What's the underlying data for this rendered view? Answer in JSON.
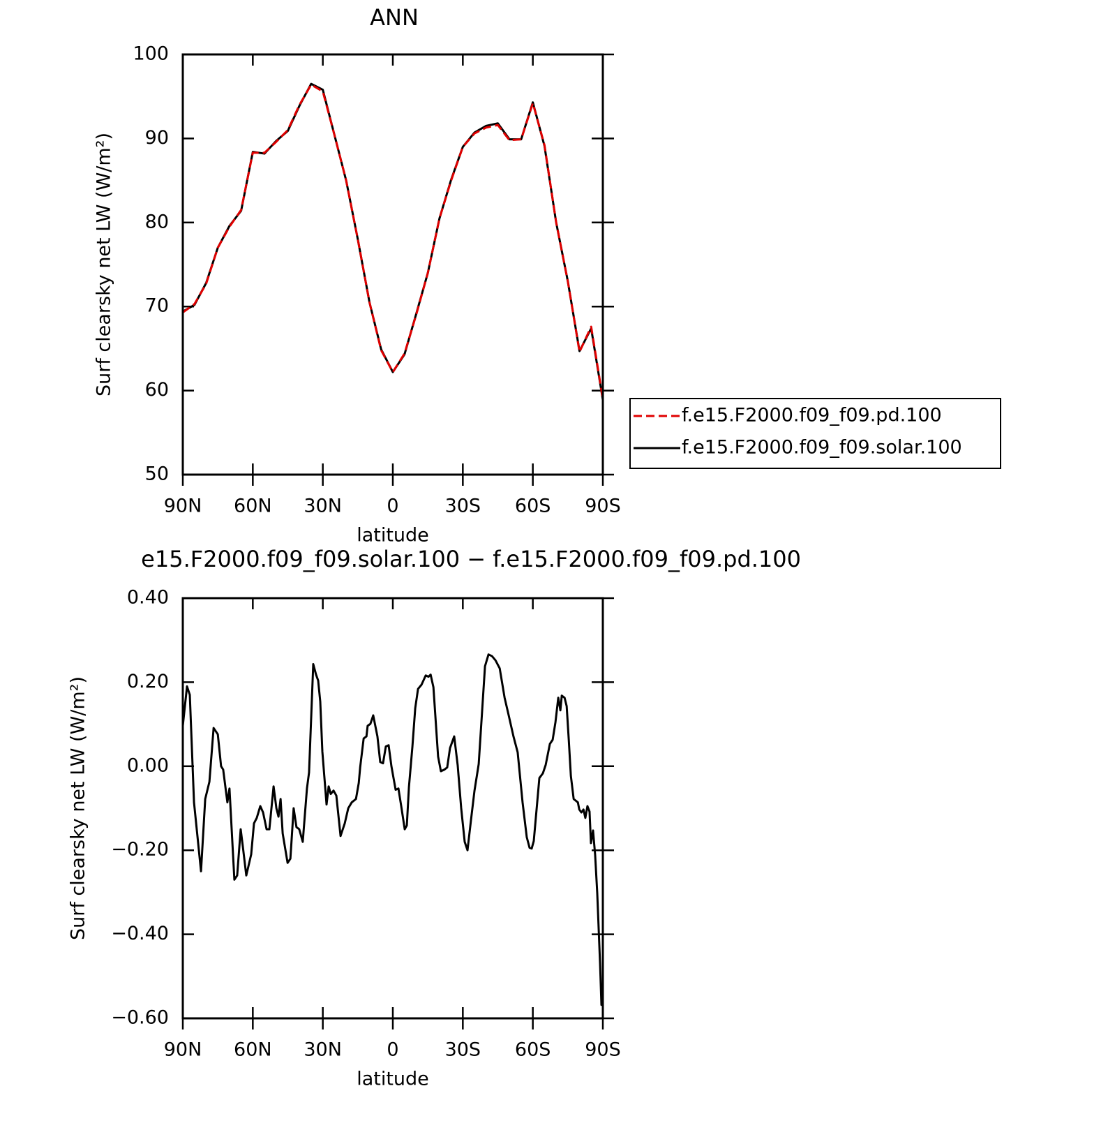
{
  "chart_data": [
    {
      "type": "line",
      "title": "ANN",
      "xlabel": "latitude",
      "ylabel": "Surf clearsky net LW (W/m²)",
      "x": [
        90,
        85,
        80,
        75,
        70,
        65,
        60,
        55,
        50,
        45,
        40,
        35,
        30,
        25,
        20,
        15,
        10,
        5,
        0,
        -5,
        -10,
        -15,
        -20,
        -25,
        -30,
        -35,
        -40,
        -45,
        -50,
        -55,
        -60,
        -65,
        -70,
        -75,
        -80,
        -85,
        -90
      ],
      "series": [
        {
          "name": "f.e15.F2000.f09_f09.pd.100",
          "color": "#e00000",
          "dashed": true,
          "values": [
            69.3,
            70.3,
            72.7,
            77.0,
            79.5,
            81.5,
            88.3,
            88.3,
            89.6,
            91.0,
            94.0,
            96.4,
            95.6,
            90.4,
            85.0,
            78.0,
            70.5,
            64.8,
            62.2,
            64.4,
            69.0,
            74.0,
            80.5,
            85.0,
            89.0,
            90.6,
            91.3,
            91.6,
            89.8,
            89.9,
            94.2,
            89.2,
            80.0,
            73.0,
            64.6,
            67.6,
            59.0
          ]
        },
        {
          "name": "f.e15.F2000.f09_f09.solar.100",
          "color": "#000000",
          "dashed": false,
          "values": [
            69.4,
            70.2,
            72.8,
            77.0,
            79.6,
            81.4,
            88.4,
            88.2,
            89.7,
            90.9,
            93.9,
            96.5,
            95.8,
            90.4,
            85.0,
            78.0,
            70.5,
            64.9,
            62.2,
            64.3,
            69.1,
            74.0,
            80.5,
            85.1,
            89.0,
            90.7,
            91.5,
            91.8,
            89.9,
            89.9,
            94.3,
            89.1,
            80.0,
            73.0,
            64.7,
            67.4,
            58.9
          ]
        }
      ],
      "xlim": [
        90,
        -90
      ],
      "xticks": [
        {
          "value": 90,
          "label": "90N"
        },
        {
          "value": 60,
          "label": "60N"
        },
        {
          "value": 30,
          "label": "30N"
        },
        0,
        {
          "value": -30,
          "label": "30S"
        },
        {
          "value": -60,
          "label": "60S"
        },
        {
          "value": -90,
          "label": "90S"
        }
      ],
      "ylim": [
        50,
        100
      ],
      "yticks": [
        50,
        60,
        70,
        80,
        90,
        100
      ],
      "legend": "right"
    },
    {
      "type": "line",
      "title": "e15.F2000.f09_f09.solar.100 − f.e15.F2000.f09_f09.pd.100",
      "xlabel": "latitude",
      "ylabel": "Surf clearsky net LW (W/m²)",
      "color": "#000000",
      "x": [
        90,
        88.2,
        87.0,
        85.2,
        82.2,
        80.4,
        78.6,
        76.8,
        75.0,
        73.6,
        72.7,
        70.9,
        70.0,
        67.9,
        66.7,
        65.2,
        64.3,
        62.8,
        60.7,
        59.5,
        58.3,
        56.8,
        55.6,
        54.1,
        52.9,
        51.1,
        49.9,
        49.0,
        48.1,
        47.2,
        45.1,
        43.9,
        42.5,
        41.3,
        40.1,
        38.6,
        36.8,
        35.9,
        34.1,
        32.9,
        32.0,
        31.1,
        30.2,
        28.4,
        27.5,
        26.6,
        25.4,
        24.2,
        22.4,
        20.6,
        19.1,
        17.6,
        15.8,
        14.6,
        14.0,
        12.5,
        11.3,
        10.8,
        9.6,
        8.4,
        6.6,
        5.4,
        4.2,
        3.0,
        1.8,
        0.6,
        -1.2,
        -2.4,
        -3.6,
        -5.1,
        -6.0,
        -6.9,
        -8.4,
        -9.6,
        -10.8,
        -12.3,
        -14.1,
        -15.3,
        -16.2,
        -17.4,
        -19.4,
        -20.6,
        -22.1,
        -23.3,
        -24.5,
        -26.3,
        -27.8,
        -29.3,
        -30.8,
        -32.0,
        -33.5,
        -35.0,
        -36.8,
        -39.5,
        -41.0,
        -42.5,
        -44.0,
        -45.8,
        -47.9,
        -49.7,
        -51.7,
        -53.5,
        -55.6,
        -57.4,
        -58.6,
        -59.5,
        -60.4,
        -61.6,
        -62.8,
        -64.3,
        -65.5,
        -67.3,
        -68.5,
        -69.7,
        -70.9,
        -71.8,
        -72.4,
        -73.6,
        -74.5,
        -75.4,
        -76.3,
        -77.5,
        -79.3,
        -79.9,
        -80.8,
        -81.7,
        -82.5,
        -83.4,
        -84.3,
        -84.9,
        -85.8,
        -86.7,
        -87.6,
        -88.8,
        -89.4,
        -90
      ],
      "values": [
        0.096,
        0.19,
        0.17,
        -0.086,
        -0.25,
        -0.078,
        -0.037,
        0.091,
        0.076,
        0.0,
        -0.008,
        -0.086,
        -0.053,
        -0.27,
        -0.26,
        -0.15,
        -0.19,
        -0.26,
        -0.21,
        -0.136,
        -0.123,
        -0.095,
        -0.11,
        -0.15,
        -0.15,
        -0.048,
        -0.1,
        -0.12,
        -0.078,
        -0.16,
        -0.23,
        -0.22,
        -0.1,
        -0.145,
        -0.15,
        -0.18,
        -0.053,
        -0.015,
        0.243,
        0.218,
        0.204,
        0.154,
        0.035,
        -0.091,
        -0.048,
        -0.066,
        -0.058,
        -0.07,
        -0.166,
        -0.136,
        -0.1,
        -0.086,
        -0.078,
        -0.04,
        -0.003,
        0.066,
        0.071,
        0.096,
        0.101,
        0.121,
        0.071,
        0.01,
        0.007,
        0.047,
        0.05,
        0.0,
        -0.056,
        -0.053,
        -0.095,
        -0.15,
        -0.141,
        -0.05,
        0.047,
        0.138,
        0.184,
        0.194,
        0.216,
        0.213,
        0.218,
        0.188,
        0.023,
        -0.012,
        -0.008,
        -0.003,
        0.043,
        0.071,
        0.002,
        -0.1,
        -0.18,
        -0.2,
        -0.128,
        -0.058,
        0.005,
        0.238,
        0.266,
        0.262,
        0.252,
        0.233,
        0.163,
        0.12,
        0.071,
        0.033,
        -0.086,
        -0.169,
        -0.194,
        -0.196,
        -0.178,
        -0.103,
        -0.028,
        -0.017,
        0.003,
        0.053,
        0.063,
        0.105,
        0.163,
        0.133,
        0.168,
        0.163,
        0.143,
        0.063,
        -0.023,
        -0.078,
        -0.086,
        -0.103,
        -0.11,
        -0.103,
        -0.123,
        -0.095,
        -0.108,
        -0.183,
        -0.153,
        -0.211,
        -0.302,
        -0.468,
        -0.568,
        -0.565
      ],
      "xlim": [
        90,
        -90
      ],
      "xticks": [
        {
          "value": 90,
          "label": "90N"
        },
        {
          "value": 60,
          "label": "60N"
        },
        {
          "value": 30,
          "label": "30N"
        },
        0,
        {
          "value": -30,
          "label": "30S"
        },
        {
          "value": -60,
          "label": "60S"
        },
        {
          "value": -90,
          "label": "90S"
        }
      ],
      "ylim": [
        -0.6,
        0.4
      ],
      "yticks": [
        {
          "value": -0.6,
          "label": "−0.60"
        },
        {
          "value": -0.4,
          "label": "−0.40"
        },
        {
          "value": -0.2,
          "label": "−0.20"
        },
        {
          "value": 0,
          "label": "0.00"
        },
        {
          "value": 0.2,
          "label": "0.20"
        },
        {
          "value": 0.4,
          "label": "0.40"
        }
      ]
    }
  ]
}
